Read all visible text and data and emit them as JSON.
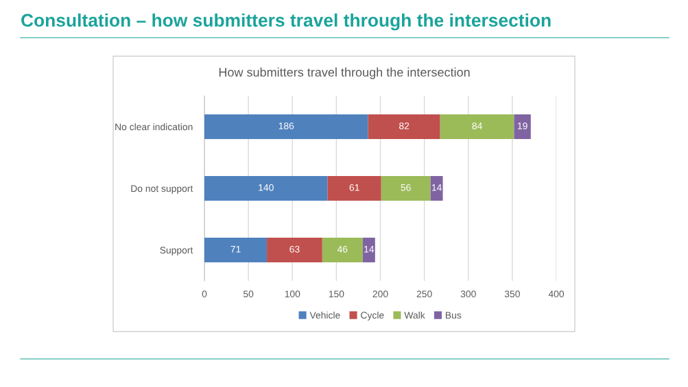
{
  "chart_data": {
    "type": "bar",
    "orientation": "horizontal",
    "stacked": true,
    "title": "Consultation – how submitters travel through the intersection",
    "subtitle": "How submitters travel through the intersection",
    "categories": [
      "No clear indication",
      "Do not support",
      "Support"
    ],
    "series": [
      {
        "name": "Vehicle",
        "color": "#4f81bd",
        "values": [
          186,
          140,
          71
        ]
      },
      {
        "name": "Cycle",
        "color": "#c0504d",
        "values": [
          82,
          61,
          63
        ]
      },
      {
        "name": "Walk",
        "color": "#9bbb59",
        "values": [
          84,
          56,
          46
        ]
      },
      {
        "name": "Bus",
        "color": "#8064a2",
        "values": [
          19,
          14,
          14
        ]
      }
    ],
    "xlim": [
      0,
      400
    ],
    "xticks": [
      0,
      50,
      100,
      150,
      200,
      250,
      300,
      350,
      400
    ],
    "grid": "x",
    "legend": "bottom",
    "data_labels": true
  }
}
